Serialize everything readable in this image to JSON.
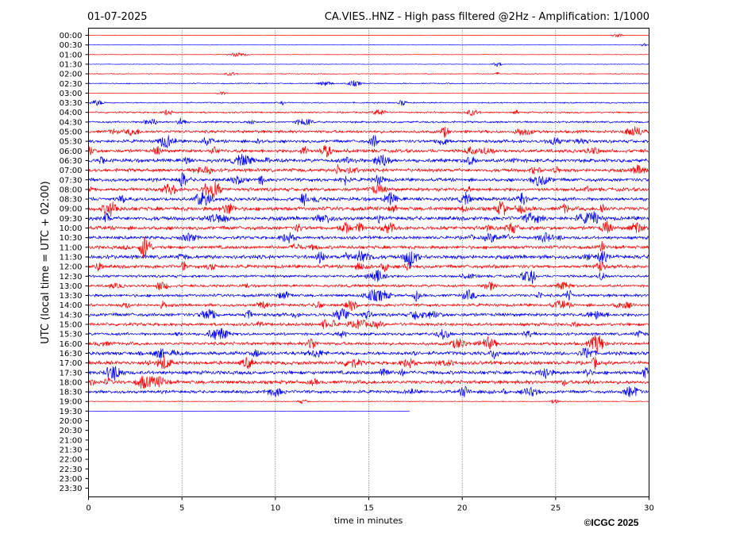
{
  "header": {
    "date": "01-07-2025",
    "title": "CA.VIES..HNZ - High pass filtered @2Hz - Amplification: 1/1000"
  },
  "footer": {
    "copyright": "©ICGC 2025"
  },
  "chart_data": {
    "type": "line",
    "title": "CA.VIES..HNZ - High pass filtered @2Hz - Amplification: 1/1000",
    "xlabel": "time in minutes",
    "ylabel": "UTC (local time = UTC + 02:00)",
    "xlim": [
      0,
      30
    ],
    "x_ticks": [
      "0",
      "5",
      "10",
      "15",
      "20",
      "25",
      "30"
    ],
    "x_gridlines": [
      5,
      10,
      15,
      20,
      25
    ],
    "grid_style": "dotted vertical",
    "row_labels": [
      "00:00",
      "00:30",
      "01:00",
      "01:30",
      "02:00",
      "02:30",
      "03:00",
      "03:30",
      "04:00",
      "04:30",
      "05:00",
      "05:30",
      "06:00",
      "06:30",
      "07:00",
      "07:30",
      "08:00",
      "08:30",
      "09:00",
      "09:30",
      "10:00",
      "10:30",
      "11:00",
      "11:30",
      "12:00",
      "12:30",
      "13:00",
      "13:30",
      "14:00",
      "14:30",
      "15:00",
      "15:30",
      "16:00",
      "16:30",
      "17:00",
      "17:30",
      "18:00",
      "18:30",
      "19:00",
      "19:30",
      "20:00",
      "20:30",
      "21:00",
      "21:30",
      "22:00",
      "22:30",
      "23:00",
      "23:30"
    ],
    "series_colors": [
      "#ff0000",
      "#0000ff"
    ],
    "record_end": {
      "row": "19:30",
      "minute": 17.2
    },
    "activity": [
      0.3,
      0.3,
      0.4,
      0.4,
      0.6,
      0.8,
      0.3,
      1.0,
      1.2,
      1.5,
      2.2,
      2.4,
      2.6,
      2.8,
      2.6,
      2.6,
      2.7,
      2.8,
      3.0,
      3.0,
      2.8,
      2.4,
      2.6,
      3.0,
      2.6,
      2.0,
      2.0,
      2.2,
      2.2,
      2.6,
      2.4,
      2.2,
      2.4,
      2.8,
      2.8,
      2.8,
      2.8,
      2.4,
      0.6,
      0.1,
      0,
      0,
      0,
      0,
      0,
      0,
      0,
      0
    ]
  }
}
